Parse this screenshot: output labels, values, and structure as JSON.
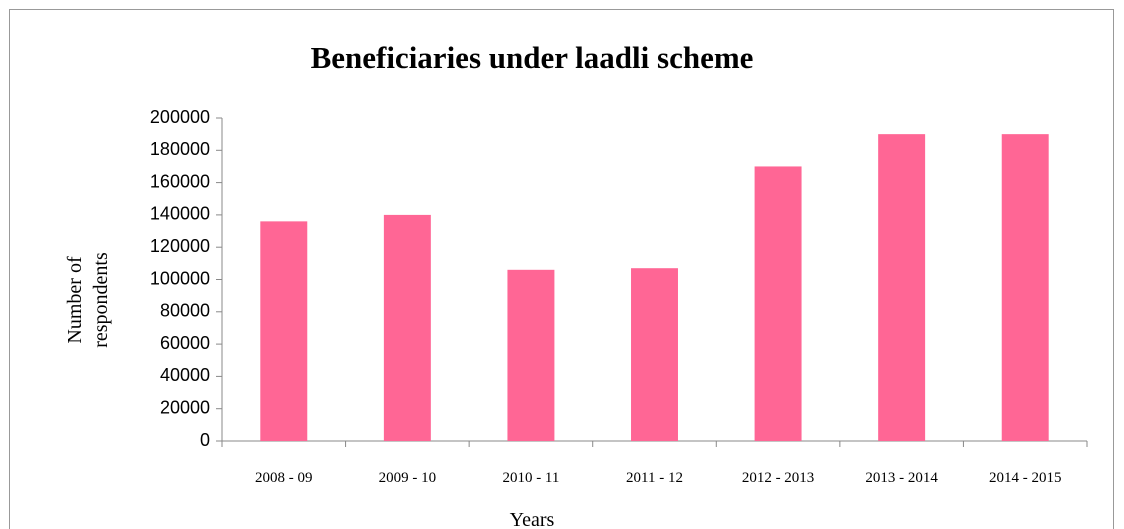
{
  "chart_data": {
    "type": "bar",
    "title": "Beneficiaries under laadli scheme",
    "x_label": "Years",
    "y_label": "Number of respondents",
    "categories": [
      "2008 - 09",
      "2009 - 10",
      "2010 - 11",
      "2011 - 12",
      "2012 - 2013",
      "2013 - 2014",
      "2014 - 2015"
    ],
    "values": [
      136000,
      140000,
      106000,
      107000,
      170000,
      190000,
      190000
    ],
    "color": "#ff6695",
    "ylim": [
      0,
      200000
    ],
    "yticks": [
      0,
      20000,
      40000,
      60000,
      80000,
      100000,
      120000,
      140000,
      160000,
      180000,
      200000
    ],
    "grid": false
  }
}
